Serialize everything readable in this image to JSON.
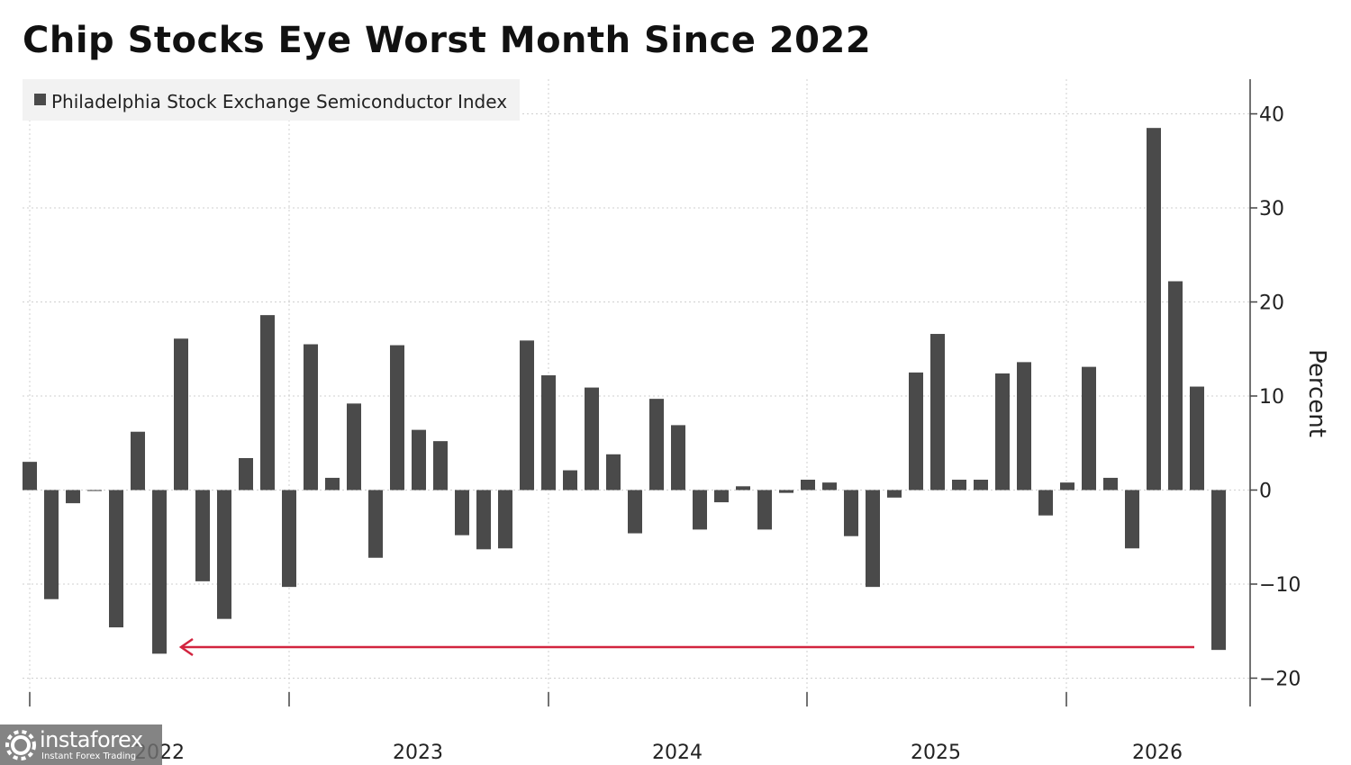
{
  "title": "Chip Stocks Eye Worst Month Since 2022",
  "chart_data": {
    "type": "bar",
    "legend": {
      "label": "Philadelphia Stock Exchange Semiconductor Index",
      "placement": "top-left"
    },
    "ylabel": "Percent",
    "ylim": [
      -23,
      44
    ],
    "yticks": [
      40,
      30,
      20,
      10,
      0,
      -10,
      -20
    ],
    "year_labels": [
      "2022",
      "2023",
      "2024",
      "2025",
      "2026"
    ],
    "series": [
      {
        "color": "#4a4a4a",
        "values": [
          3.0,
          -11.6,
          -1.4,
          -0.1,
          -14.6,
          6.2,
          -17.4,
          16.1,
          -9.7,
          -13.7,
          3.4,
          18.6,
          -10.3,
          15.5,
          1.3,
          9.2,
          -7.2,
          15.4,
          6.4,
          5.2,
          -4.8,
          -6.3,
          -6.2,
          15.9,
          12.2,
          2.1,
          10.9,
          3.8,
          -4.6,
          9.7,
          6.9,
          -4.2,
          -1.3,
          0.4,
          -4.2,
          -0.3,
          1.1,
          0.8,
          -4.9,
          -10.3,
          -0.8,
          12.5,
          16.6,
          1.1,
          1.1,
          12.4,
          13.6,
          -2.7,
          0.8,
          13.1,
          1.3,
          -6.2,
          38.5,
          22.2,
          11.0,
          -17.0
        ]
      }
    ],
    "annotation": {
      "type": "arrow",
      "color": "#d2243f",
      "level": -16.7
    }
  },
  "watermark": {
    "brand": "instaforex",
    "tagline": "Instant Forex Trading"
  }
}
